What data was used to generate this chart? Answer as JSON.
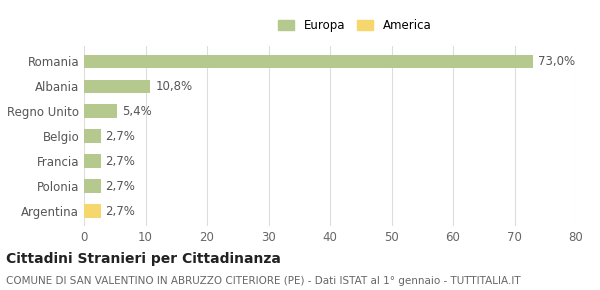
{
  "categories": [
    "Argentina",
    "Polonia",
    "Francia",
    "Belgio",
    "Regno Unito",
    "Albania",
    "Romania"
  ],
  "values": [
    2.7,
    2.7,
    2.7,
    2.7,
    5.4,
    10.8,
    73.0
  ],
  "labels": [
    "2,7%",
    "2,7%",
    "2,7%",
    "2,7%",
    "5,4%",
    "10,8%",
    "73,0%"
  ],
  "colors": [
    "#f5d76e",
    "#b5c98e",
    "#b5c98e",
    "#b5c98e",
    "#b5c98e",
    "#b5c98e",
    "#b5c98e"
  ],
  "legend": [
    {
      "label": "Europa",
      "color": "#b5c98e"
    },
    {
      "label": "America",
      "color": "#f5d76e"
    }
  ],
  "xlim": [
    0,
    80
  ],
  "xticks": [
    0,
    10,
    20,
    30,
    40,
    50,
    60,
    70,
    80
  ],
  "title_bold": "Cittadini Stranieri per Cittadinanza",
  "subtitle": "COMUNE DI SAN VALENTINO IN ABRUZZO CITERIORE (PE) - Dati ISTAT al 1° gennaio - TUTTITALIA.IT",
  "bg_color": "#ffffff",
  "grid_color": "#dddddd",
  "bar_height": 0.55,
  "label_fontsize": 8.5,
  "tick_fontsize": 8.5,
  "title_fontsize": 10,
  "subtitle_fontsize": 7.5
}
